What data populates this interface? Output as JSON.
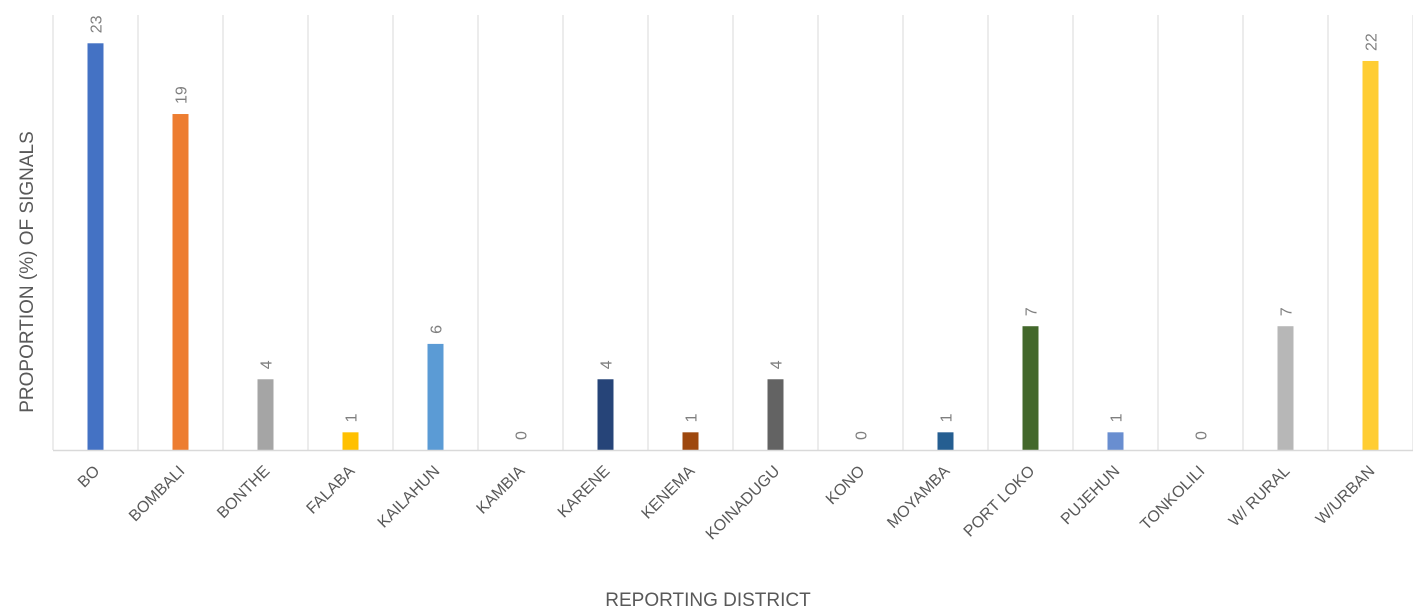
{
  "chart_data": {
    "type": "bar",
    "title": "",
    "xlabel": "REPORTING DISTRICT",
    "ylabel": "PROPORTION (%) OF SIGNALS",
    "categories": [
      "BO",
      "BOMBALI",
      "BONTHE",
      "FALABA",
      "KAILAHUN",
      "KAMBIA",
      "KARENE",
      "KENEMA",
      "KOINADUGU",
      "KONO",
      "MOYAMBA",
      "PORT LOKO",
      "PUJEHUN",
      "TONKOLILI",
      "W/ RURAL",
      "W/URBAN"
    ],
    "values": [
      23,
      19,
      4,
      1,
      6,
      0,
      4,
      1,
      4,
      0,
      1,
      7,
      1,
      0,
      7,
      22
    ],
    "colors": [
      "#4472C4",
      "#ED7D31",
      "#A5A5A5",
      "#FFC000",
      "#5B9BD5",
      "#70AD47",
      "#264478",
      "#9E480E",
      "#636363",
      "#997300",
      "#255E91",
      "#43682B",
      "#698ED0",
      "#F1975A",
      "#B7B7B7",
      "#FFCD33"
    ],
    "ylim": [
      0,
      24.6
    ],
    "grid": "vertical",
    "legend": "none"
  }
}
